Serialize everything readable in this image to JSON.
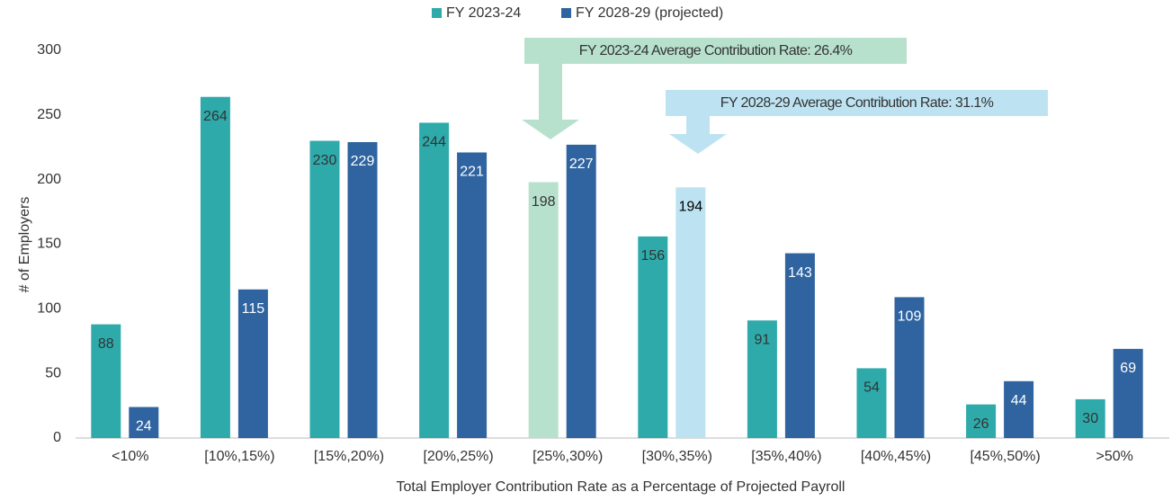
{
  "chart_data": {
    "type": "bar",
    "categories": [
      "<10%",
      "[10%,15%)",
      "[15%,20%)",
      "[20%,25%)",
      "[25%,30%)",
      "[30%,35%)",
      "[35%,40%)",
      "[40%,45%)",
      "[45%,50%)",
      ">50%"
    ],
    "series": [
      {
        "name": "FY 2023-24",
        "color": "#2eaaaa",
        "colors": [
          "#2eaaaa",
          "#2eaaaa",
          "#2eaaaa",
          "#2eaaaa",
          "#b7e1cd",
          "#2eaaaa",
          "#2eaaaa",
          "#2eaaaa",
          "#2eaaaa",
          "#2eaaaa"
        ],
        "label_colors": [
          "#333333",
          "#333333",
          "#333333",
          "#333333",
          "#333333",
          "#333333",
          "#333333",
          "#333333",
          "#333333",
          "#333333"
        ],
        "values": [
          88,
          264,
          230,
          244,
          198,
          156,
          91,
          54,
          26,
          30
        ]
      },
      {
        "name": "FY 2028-29 (projected)",
        "color": "#2f64a0",
        "colors": [
          "#2f64a0",
          "#2f64a0",
          "#2f64a0",
          "#2f64a0",
          "#2f64a0",
          "#bde3f2",
          "#2f64a0",
          "#2f64a0",
          "#2f64a0",
          "#2f64a0"
        ],
        "label_colors": [
          "#ffffff",
          "#ffffff",
          "#ffffff",
          "#ffffff",
          "#ffffff",
          "#000000",
          "#ffffff",
          "#ffffff",
          "#ffffff",
          "#ffffff"
        ],
        "values": [
          24,
          115,
          229,
          221,
          227,
          194,
          143,
          109,
          44,
          69
        ]
      }
    ],
    "x_label": "Total Employer Contribution Rate as a Percentage of Projected Payroll",
    "y_label": "# of Employers",
    "ylim": [
      0,
      300
    ],
    "yticks": [
      0,
      50,
      100,
      150,
      200,
      250,
      300
    ],
    "grid": false,
    "legend": "top",
    "annotations": [
      {
        "text": "FY 2023-24 Average Contribution Rate:  26.4%",
        "color": "#b7e1cd"
      },
      {
        "text": "FY 2028-29 Average Contribution Rate:  31.1%",
        "color": "#bde3f2"
      }
    ]
  }
}
